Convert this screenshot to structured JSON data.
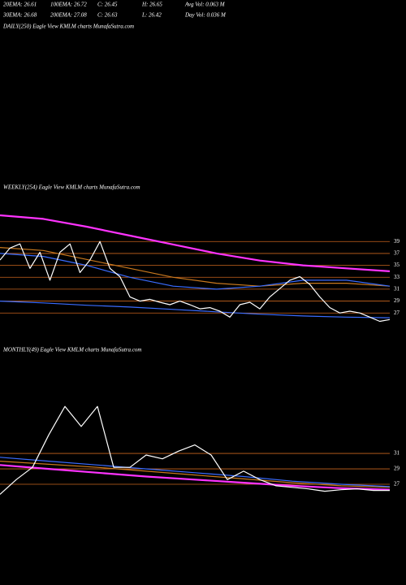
{
  "header": {
    "row1": [
      "20EMA: 26.61",
      "100EMA: 26.72",
      "C: 26.45",
      "H: 26.65",
      "Avg Vol: 0.063  M"
    ],
    "row2": [
      "30EMA: 26.68",
      "200EMA: 27.08",
      "C: 26.63",
      "L: 26.42",
      "Day Vol: 0.036  M"
    ]
  },
  "chart_data": [
    {
      "type": "line",
      "title": "DAILY(250) Eagle   View  KMLM charts MunafaSutra.com"
    },
    {
      "type": "line",
      "title": "WEEKLY(254) Eagle   View  KMLM charts MunafaSutra.com",
      "ylim": [
        24.3,
        47.5
      ],
      "yticks": [
        39,
        37,
        35,
        33,
        31,
        29,
        27
      ],
      "grid": true,
      "grid_color": "#c8641e",
      "series": [
        {
          "color": "#ff33ff",
          "values": [
            43.4,
            42.8,
            41.5,
            40,
            38.5,
            37,
            35.8,
            35,
            34.5,
            34
          ]
        },
        {
          "color": "#c8781e",
          "values": [
            38,
            37.5,
            36,
            34.5,
            33,
            32,
            31.5,
            32,
            32,
            31.5
          ]
        },
        {
          "color": "#3a6cff",
          "values": [
            37,
            36.5,
            35,
            33,
            31.5,
            31,
            31.5,
            32.5,
            32.5,
            31.5
          ]
        },
        {
          "color": "#3a6cff",
          "values": [
            29,
            28.7,
            28.3,
            28,
            27.6,
            27.2,
            26.8,
            26.5,
            26.3,
            26.2
          ]
        },
        {
          "color": "#ffffff",
          "values": [
            35.9,
            37.9,
            38.6,
            34.5,
            37.2,
            32.5,
            37.2,
            38.6,
            33.8,
            35.9,
            39,
            34.5,
            33.1,
            29.7,
            29,
            29.3,
            28.8,
            28.4,
            29,
            28.4,
            27.7,
            27.9,
            27.3,
            26.3,
            28.4,
            28.8,
            27.7,
            29.7,
            31.1,
            32.5,
            33.1,
            31.8,
            29.7,
            27.9,
            27,
            27.3,
            27,
            26.3,
            25.6,
            25.9
          ]
        }
      ]
    },
    {
      "type": "line",
      "title": "MONTHLY(49) Eagle   View  KMLM charts MunafaSutra.com",
      "ylim": [
        25,
        44.5
      ],
      "yticks": [
        31,
        29,
        27
      ],
      "grid": true,
      "grid_color": "#c8641e",
      "series": [
        {
          "color": "#ff33ff",
          "values": [
            29.5,
            29,
            28.5,
            28,
            27.6,
            27.2,
            26.8,
            26.5,
            26.3
          ]
        },
        {
          "color": "#c8781e",
          "values": [
            30,
            29.6,
            29.2,
            28.7,
            28.2,
            27.7,
            27.2,
            26.8,
            26.6
          ]
        },
        {
          "color": "#3a6cff",
          "values": [
            30.5,
            30,
            29.5,
            29,
            28.5,
            28,
            27.4,
            27,
            26.7
          ]
        },
        {
          "color": "#ffffff",
          "values": [
            25.7,
            27.6,
            29.2,
            33.4,
            37.1,
            34.5,
            37.1,
            29.2,
            29.2,
            30.8,
            30.3,
            31.3,
            32.1,
            30.8,
            27.6,
            28.7,
            27.6,
            26.8,
            26.6,
            26.4,
            26.1,
            26.3,
            26.4,
            26.2,
            26.2
          ]
        }
      ]
    }
  ]
}
